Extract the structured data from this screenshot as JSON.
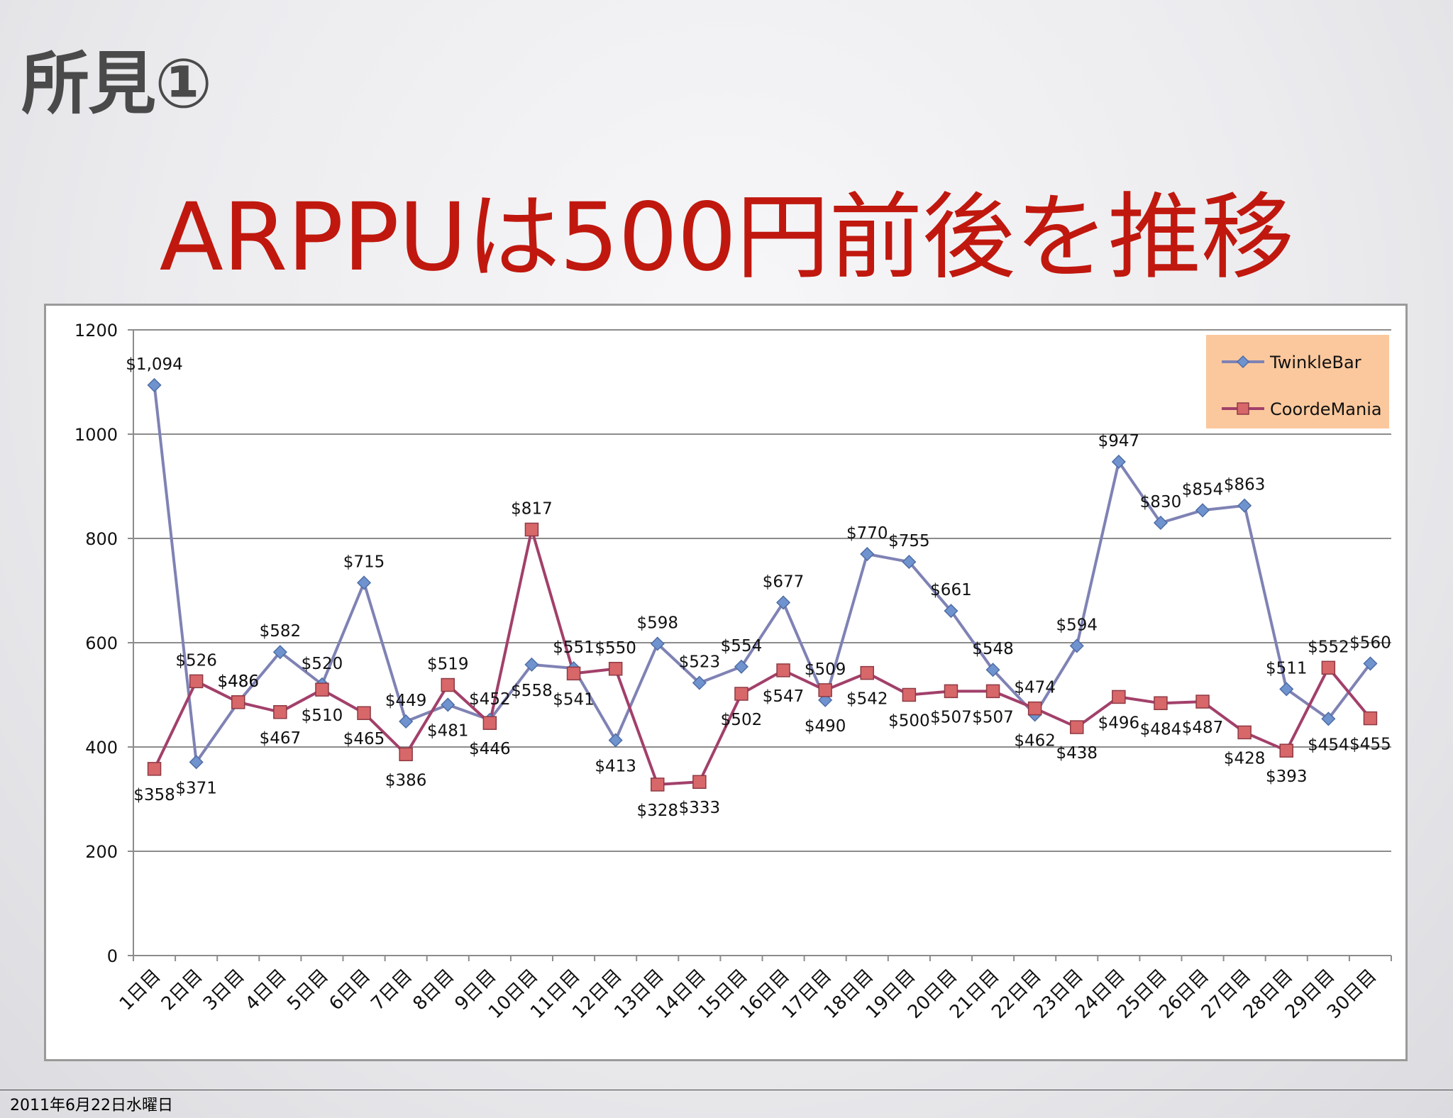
{
  "slide": {
    "title": "所見①",
    "headline": "ARPPUは500円前後を推移",
    "footer_date": "2011年6月22日水曜日"
  },
  "colors": {
    "headline": "#c0180e",
    "twinklebar": "#7f82b4",
    "twinklebar_marker": "#6f93cf",
    "coordemania": "#a2406a",
    "coordemania_marker": "#d8676a",
    "legend_bg": "#fbc89d"
  },
  "chart_data": {
    "type": "line",
    "categories": [
      "1日目",
      "2日目",
      "3日目",
      "4日目",
      "5日目",
      "6日目",
      "7日目",
      "8日目",
      "9日目",
      "10日目",
      "11日目",
      "12日目",
      "13日目",
      "14日目",
      "15日目",
      "16日目",
      "17日目",
      "18日目",
      "19日目",
      "20日目",
      "21日目",
      "22日目",
      "23日目",
      "24日目",
      "25日目",
      "26日目",
      "27日目",
      "28日目",
      "29日目",
      "30日目"
    ],
    "yticks": [
      "0",
      "200",
      "400",
      "600",
      "800",
      "1000",
      "1200"
    ],
    "ylim": [
      0,
      1200
    ],
    "grid": true,
    "legend_position": "top-right",
    "series": [
      {
        "name": "TwinkleBar",
        "marker": "diamond",
        "values": [
          1094,
          371,
          486,
          582,
          520,
          715,
          449,
          481,
          452,
          558,
          551,
          413,
          598,
          523,
          554,
          677,
          490,
          770,
          755,
          661,
          548,
          462,
          594,
          947,
          830,
          854,
          863,
          511,
          454,
          560
        ],
        "labels": [
          "$1,094",
          "$371",
          "$486",
          "$582",
          "$520",
          "$715",
          "$449",
          "$481",
          "$452",
          "$558",
          "$551",
          "$413",
          "$598",
          "$523",
          "$554",
          "$677",
          "$490",
          "$770",
          "$755",
          "$661",
          "$548",
          "$462",
          "$594",
          "$947",
          "$830",
          "$854",
          "$863",
          "$511",
          "$454",
          "$560"
        ]
      },
      {
        "name": "CoordeMania",
        "marker": "square",
        "values": [
          358,
          526,
          486,
          467,
          510,
          465,
          386,
          519,
          446,
          817,
          541,
          550,
          328,
          333,
          502,
          547,
          509,
          542,
          500,
          507,
          507,
          474,
          438,
          496,
          484,
          487,
          428,
          393,
          552,
          455
        ],
        "labels": [
          "$358",
          "$526",
          "$486",
          "$467",
          "$510",
          "$465",
          "$386",
          "$519",
          "$446",
          "$817",
          "$541",
          "$550",
          "$328",
          "$333",
          "$502",
          "$547",
          "$509",
          "$542",
          "$500",
          "$507",
          "$507",
          "$474",
          "$438",
          "$496",
          "$484",
          "$487",
          "$428",
          "$393",
          "$552",
          "$455"
        ]
      }
    ]
  }
}
